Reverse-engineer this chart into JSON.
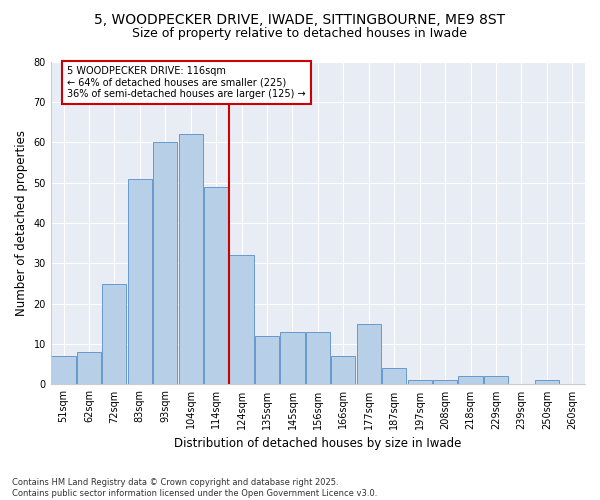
{
  "title1": "5, WOODPECKER DRIVE, IWADE, SITTINGBOURNE, ME9 8ST",
  "title2": "Size of property relative to detached houses in Iwade",
  "xlabel": "Distribution of detached houses by size in Iwade",
  "ylabel": "Number of detached properties",
  "categories": [
    "51sqm",
    "62sqm",
    "72sqm",
    "83sqm",
    "93sqm",
    "104sqm",
    "114sqm",
    "124sqm",
    "135sqm",
    "145sqm",
    "156sqm",
    "166sqm",
    "177sqm",
    "187sqm",
    "197sqm",
    "208sqm",
    "218sqm",
    "229sqm",
    "239sqm",
    "250sqm",
    "260sqm"
  ],
  "values": [
    7,
    8,
    25,
    51,
    60,
    62,
    49,
    32,
    12,
    13,
    13,
    7,
    15,
    4,
    1,
    1,
    2,
    2,
    0,
    1,
    0
  ],
  "bar_color": "#b8cfe8",
  "bar_edge_color": "#6699cc",
  "vline_color": "#cc0000",
  "vline_after_bar": 6,
  "annotation_text": "5 WOODPECKER DRIVE: 116sqm\n← 64% of detached houses are smaller (225)\n36% of semi-detached houses are larger (125) →",
  "annotation_box_facecolor": "#ffffff",
  "annotation_box_edgecolor": "#cc0000",
  "ylim": [
    0,
    80
  ],
  "yticks": [
    0,
    10,
    20,
    30,
    40,
    50,
    60,
    70,
    80
  ],
  "fig_facecolor": "#ffffff",
  "ax_facecolor": "#e8edf5",
  "grid_color": "#ffffff",
  "footer1": "Contains HM Land Registry data © Crown copyright and database right 2025.",
  "footer2": "Contains public sector information licensed under the Open Government Licence v3.0.",
  "title_fontsize": 10,
  "subtitle_fontsize": 9,
  "tick_fontsize": 7,
  "axis_label_fontsize": 8.5,
  "annotation_fontsize": 7,
  "footer_fontsize": 6
}
